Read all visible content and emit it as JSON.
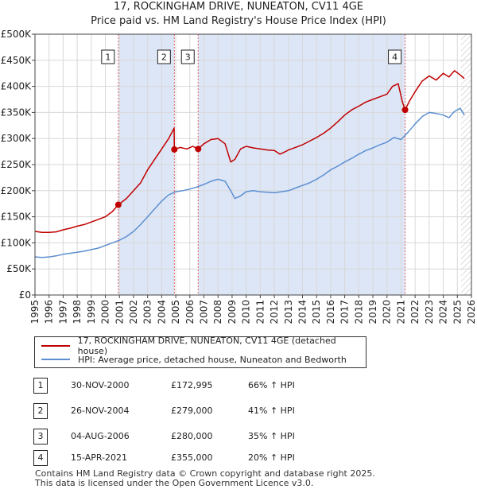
{
  "title_line1": "17, ROCKINGHAM DRIVE, NUNEATON, CV11 4GE",
  "title_line2": "Price paid vs. HM Land Registry's House Price Index (HPI)",
  "chart_data": {
    "type": "line",
    "title": "17, ROCKINGHAM DRIVE, NUNEATON, CV11 4GE — Price paid vs. HM Land Registry's House Price Index (HPI)",
    "xlabel": "",
    "ylabel": "",
    "xlim": [
      1995,
      2026
    ],
    "ylim": [
      0,
      500000
    ],
    "x_ticks": [
      1995,
      1996,
      1997,
      1998,
      1999,
      2000,
      2001,
      2002,
      2003,
      2004,
      2005,
      2006,
      2007,
      2008,
      2009,
      2010,
      2011,
      2012,
      2013,
      2014,
      2015,
      2016,
      2017,
      2018,
      2019,
      2020,
      2021,
      2022,
      2023,
      2024,
      2025,
      2026
    ],
    "y_ticks": [
      0,
      50000,
      100000,
      150000,
      200000,
      250000,
      300000,
      350000,
      400000,
      450000,
      500000
    ],
    "y_tick_labels": [
      "£0",
      "£50K",
      "£100K",
      "£150K",
      "£200K",
      "£250K",
      "£300K",
      "£350K",
      "£400K",
      "£450K",
      "£500K"
    ],
    "grid": true,
    "colors": {
      "red": "#c00000",
      "blue": "#5b8fd1",
      "shade": "#dde6f6",
      "grid": "#d8d8d8"
    },
    "shaded_periods": [
      [
        2000.92,
        2004.9
      ],
      [
        2006.59,
        2021.29
      ]
    ],
    "hatched_region": [
      2025.25,
      2026
    ],
    "series": [
      {
        "name": "17, ROCKINGHAM DRIVE, NUNEATON, CV11 4GE (detached house)",
        "color": "#c00000",
        "x": [
          1995,
          1995.5,
          1996,
          1996.5,
          1997,
          1997.5,
          1998,
          1998.5,
          1999,
          1999.5,
          2000,
          2000.5,
          2000.92,
          2001.5,
          2002,
          2002.5,
          2003,
          2003.5,
          2004,
          2004.5,
          2004.88,
          2004.9,
          2005.3,
          2005.8,
          2006.2,
          2006.59,
          2007,
          2007.5,
          2008,
          2008.5,
          2008.9,
          2009.2,
          2009.6,
          2010,
          2010.5,
          2011,
          2011.5,
          2012,
          2012.4,
          2012.8,
          2013,
          2013.5,
          2014,
          2014.5,
          2015,
          2015.5,
          2016,
          2016.5,
          2017,
          2017.5,
          2018,
          2018.5,
          2019,
          2019.5,
          2020,
          2020.4,
          2020.8,
          2021.1,
          2021.29,
          2021.6,
          2022,
          2022.5,
          2023,
          2023.5,
          2024,
          2024.4,
          2024.8,
          2025.2,
          2025.5
        ],
        "y": [
          122000,
          120000,
          120000,
          121000,
          125000,
          128000,
          132000,
          135000,
          140000,
          145000,
          150000,
          160000,
          172995,
          185000,
          200000,
          215000,
          240000,
          260000,
          280000,
          300000,
          320000,
          279000,
          283000,
          280000,
          285000,
          280000,
          290000,
          298000,
          300000,
          290000,
          255000,
          260000,
          280000,
          285000,
          282000,
          280000,
          278000,
          277000,
          270000,
          275000,
          278000,
          283000,
          288000,
          295000,
          302000,
          310000,
          320000,
          332000,
          345000,
          355000,
          362000,
          370000,
          375000,
          380000,
          385000,
          400000,
          405000,
          370000,
          355000,
          372000,
          390000,
          410000,
          420000,
          412000,
          425000,
          418000,
          430000,
          422000,
          415000
        ]
      },
      {
        "name": "HPI: Average price, detached house, Nuneaton and Bedworth",
        "color": "#5b8fd1",
        "x": [
          1995,
          1995.5,
          1996,
          1996.5,
          1997,
          1997.5,
          1998,
          1998.5,
          1999,
          1999.5,
          2000,
          2000.5,
          2001,
          2001.5,
          2002,
          2002.5,
          2003,
          2003.5,
          2004,
          2004.5,
          2005,
          2005.5,
          2006,
          2006.5,
          2007,
          2007.5,
          2008,
          2008.5,
          2008.9,
          2009.2,
          2009.6,
          2010,
          2010.5,
          2011,
          2011.5,
          2012,
          2012.5,
          2013,
          2013.5,
          2014,
          2014.5,
          2015,
          2015.5,
          2016,
          2016.5,
          2017,
          2017.5,
          2018,
          2018.5,
          2019,
          2019.5,
          2020,
          2020.5,
          2021,
          2021.5,
          2022,
          2022.5,
          2023,
          2023.5,
          2024,
          2024.4,
          2024.8,
          2025.2,
          2025.5
        ],
        "y": [
          73000,
          72000,
          73000,
          75000,
          78000,
          80000,
          82000,
          84000,
          87000,
          90000,
          95000,
          100000,
          105000,
          112000,
          122000,
          135000,
          150000,
          165000,
          180000,
          192000,
          198000,
          200000,
          203000,
          207000,
          212000,
          218000,
          222000,
          218000,
          200000,
          185000,
          190000,
          198000,
          200000,
          198000,
          197000,
          196000,
          198000,
          200000,
          205000,
          210000,
          215000,
          222000,
          230000,
          240000,
          247000,
          255000,
          262000,
          270000,
          277000,
          282000,
          288000,
          293000,
          302000,
          298000,
          312000,
          328000,
          342000,
          350000,
          348000,
          345000,
          340000,
          352000,
          358000,
          345000
        ]
      }
    ],
    "sales": [
      {
        "label": "1",
        "x": 2000.92,
        "y": 172995
      },
      {
        "label": "2",
        "x": 2004.9,
        "y": 279000
      },
      {
        "label": "3",
        "x": 2006.59,
        "y": 280000
      },
      {
        "label": "4",
        "x": 2021.29,
        "y": 355000
      }
    ]
  },
  "legend": {
    "red_label": "17, ROCKINGHAM DRIVE, NUNEATON, CV11 4GE (detached house)",
    "blue_label": "HPI: Average price, detached house, Nuneaton and Bedworth"
  },
  "transactions": [
    {
      "num": "1",
      "date": "30-NOV-2000",
      "price": "£172,995",
      "hpi": "66% ↑ HPI"
    },
    {
      "num": "2",
      "date": "26-NOV-2004",
      "price": "£279,000",
      "hpi": "41% ↑ HPI"
    },
    {
      "num": "3",
      "date": "04-AUG-2006",
      "price": "£280,000",
      "hpi": "35% ↑ HPI"
    },
    {
      "num": "4",
      "date": "15-APR-2021",
      "price": "£355,000",
      "hpi": "20% ↑ HPI"
    }
  ],
  "footer": {
    "line1": "Contains HM Land Registry data © Crown copyright and database right 2025.",
    "line2": "This data is licensed under the Open Government Licence v3.0."
  }
}
